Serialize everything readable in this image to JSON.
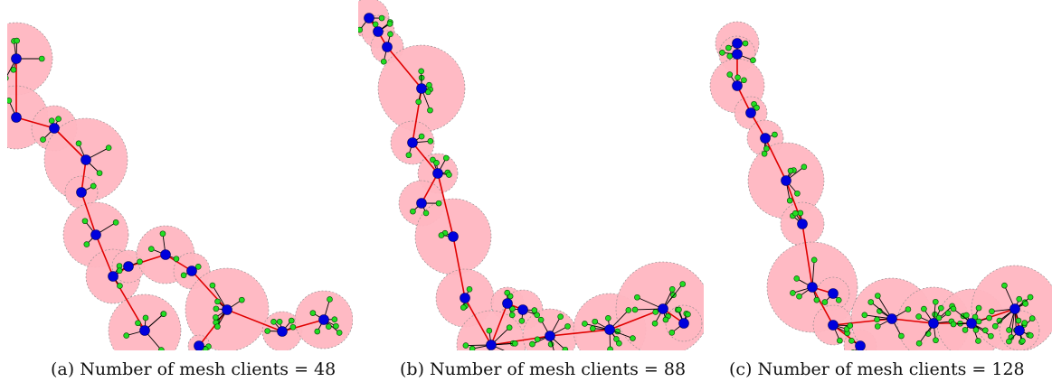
{
  "figure": {
    "captions": [
      "(a) Number of mesh clients = 48",
      "(b) Number of mesh clients = 88",
      "(c) Number of mesh clients = 128"
    ]
  },
  "legend_colors": {
    "coverage": "#ffb6c1",
    "backbone_link": "#e00000",
    "router": "#0000dd",
    "client": "#22dd22"
  }
}
